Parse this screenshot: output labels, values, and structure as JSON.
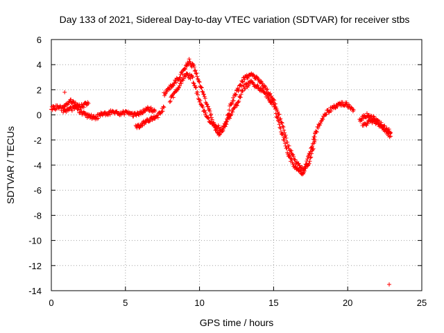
{
  "chart_data": {
    "type": "scatter",
    "title": "Day 133 of 2021, Sidereal Day-to-day VTEC variation (SDTVAR) for receiver stbs",
    "xlabel": "GPS time / hours",
    "ylabel": "SDTVAR / TECUs",
    "xlim": [
      0,
      25
    ],
    "ylim": [
      -14,
      6
    ],
    "xticks": [
      0,
      5,
      10,
      15,
      20,
      25
    ],
    "yticks": [
      -14,
      -12,
      -10,
      -8,
      -6,
      -4,
      -2,
      0,
      2,
      4,
      6
    ],
    "grid": true,
    "marker": "+",
    "series": [
      {
        "name": "SDTVAR",
        "color": "#ff0000",
        "bands": [
          {
            "x": [
              0.0,
              0.4,
              0.8,
              1.2,
              1.6,
              2.0,
              2.5
            ],
            "y": [
              0.5,
              0.6,
              0.5,
              1.1,
              0.9,
              0.7,
              0.9
            ]
          },
          {
            "x": [
              0.8,
              1.2,
              1.6,
              2.0,
              2.5,
              3.0,
              3.5,
              4.0,
              4.5,
              5.0,
              5.5,
              6.0,
              6.5,
              7.0
            ],
            "y": [
              0.2,
              0.4,
              0.6,
              0.2,
              -0.1,
              -0.2,
              0.1,
              0.2,
              0.1,
              0.2,
              0.0,
              0.2,
              0.5,
              0.3
            ]
          },
          {
            "x": [
              5.7,
              6.5,
              7.2,
              7.6
            ],
            "y": [
              -1.0,
              -0.5,
              -0.1,
              0.6
            ]
          },
          {
            "x": [
              7.6,
              8.0,
              8.5,
              9.0,
              9.3,
              9.6,
              10.0,
              10.3,
              10.7,
              11.0,
              11.3,
              11.7,
              12.0
            ],
            "y": [
              1.6,
              2.2,
              2.8,
              3.6,
              4.3,
              3.8,
              2.6,
              1.5,
              0.2,
              -1.0,
              -1.5,
              -1.0,
              0.0
            ]
          },
          {
            "x": [
              8.0,
              8.5,
              9.0,
              9.5,
              10.0,
              10.5,
              11.0,
              11.5,
              12.0
            ],
            "y": [
              1.2,
              2.0,
              3.2,
              3.0,
              1.2,
              -0.2,
              -0.8,
              -1.2,
              0.1
            ]
          },
          {
            "x": [
              12.0,
              12.5,
              13.0,
              13.5,
              14.0,
              14.5,
              15.0,
              15.5,
              16.0,
              16.5,
              17.0,
              17.4,
              17.8
            ],
            "y": [
              0.5,
              1.8,
              2.9,
              3.2,
              2.8,
              2.0,
              1.2,
              -0.5,
              -2.5,
              -3.8,
              -4.4,
              -3.8,
              -2.0
            ]
          },
          {
            "x": [
              12.0,
              12.5,
              13.0,
              13.5,
              14.0,
              14.5,
              15.0,
              15.5,
              16.0,
              16.5,
              17.0,
              17.4,
              17.8
            ],
            "y": [
              -0.2,
              0.8,
              2.2,
              2.6,
              2.2,
              1.6,
              0.8,
              -1.2,
              -3.2,
              -4.3,
              -4.7,
              -3.2,
              -1.5
            ]
          },
          {
            "x": [
              17.8,
              18.2,
              18.6,
              19.0,
              19.5,
              20.0,
              20.4
            ],
            "y": [
              -1.5,
              -0.5,
              0.2,
              0.6,
              0.9,
              0.8,
              0.4
            ]
          },
          {
            "x": [
              20.8,
              21.3,
              21.8,
              22.3,
              22.9
            ],
            "y": [
              -0.4,
              0.0,
              -0.3,
              -0.8,
              -1.4
            ]
          },
          {
            "x": [
              21.0,
              21.5,
              22.0,
              22.5,
              22.9
            ],
            "y": [
              -0.9,
              -0.5,
              -0.6,
              -1.2,
              -1.7
            ]
          }
        ],
        "points": [
          {
            "x": 0.9,
            "y": 1.8
          },
          {
            "x": 22.8,
            "y": -13.5
          }
        ]
      }
    ]
  }
}
